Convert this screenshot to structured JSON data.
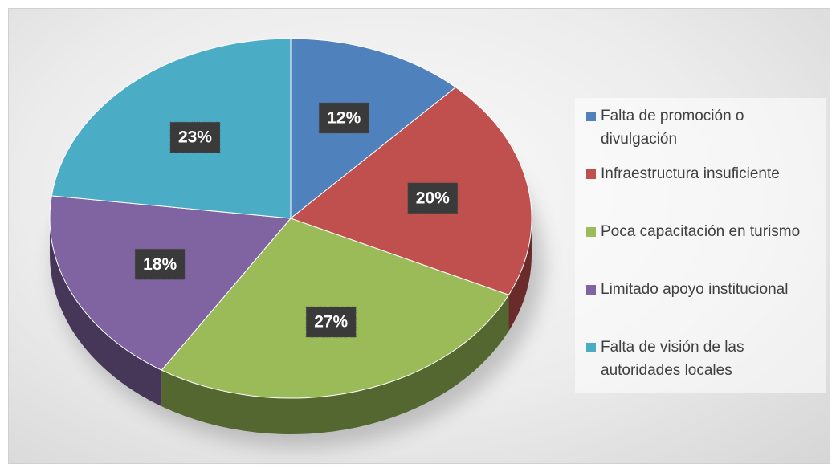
{
  "chart_data": {
    "type": "pie",
    "categories": [
      "Falta de promoción o divulgación",
      "Infraestructura insuficiente",
      "Poca capacitación en turismo",
      "Limitado apoyo institucional",
      "Falta de visión de las autoridades locales"
    ],
    "values": [
      12,
      20,
      27,
      18,
      23
    ],
    "value_labels": [
      "12%",
      "20%",
      "27%",
      "18%",
      "23%"
    ],
    "colors": [
      "#4f81bd",
      "#c0504d",
      "#9bbb59",
      "#8064a2",
      "#4bacc6"
    ],
    "legend": "right"
  }
}
